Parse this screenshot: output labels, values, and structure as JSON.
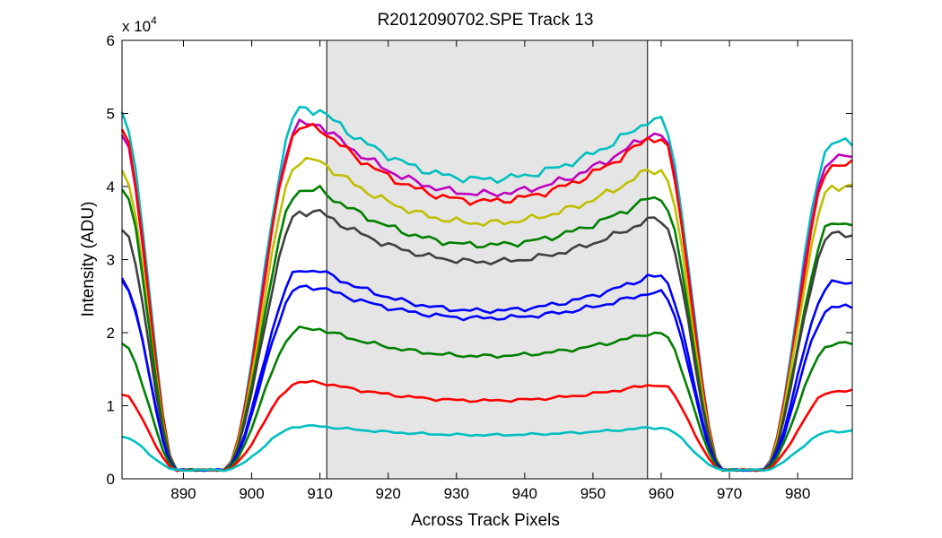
{
  "chart_data": {
    "type": "line",
    "title": "R2012090702.SPE   Track 13",
    "xlabel": "Across Track Pixels",
    "ylabel": "Intensity (ADU)",
    "y_exponent_label": "x 10",
    "y_exponent": "4",
    "xlim": [
      881,
      988
    ],
    "ylim": [
      0,
      6
    ],
    "xticks": [
      890,
      900,
      910,
      920,
      930,
      940,
      950,
      960,
      970,
      980
    ],
    "xtick_labels": [
      "890",
      "900",
      "910",
      "920",
      "930",
      "940",
      "950",
      "960",
      "970",
      "980"
    ],
    "yticks": [
      0,
      1,
      2,
      3,
      4,
      5,
      6
    ],
    "ytick_labels": [
      "0",
      "1",
      "2",
      "3",
      "4",
      "5",
      "6"
    ],
    "grid": false,
    "legend": "none",
    "shaded_region": {
      "x0": 911,
      "x1": 958,
      "color": "#e5e5e5"
    },
    "colors": {
      "background": "#ffffff",
      "axes": "#000000"
    },
    "series": [
      {
        "color": "#00bfbf",
        "peak": 5.05,
        "mid": 4.1,
        "left_edge": 5.0,
        "right_edge": 4.6
      },
      {
        "color": "#bf00bf",
        "peak": 4.85,
        "mid": 3.9,
        "left_edge": 4.7,
        "right_edge": 4.4
      },
      {
        "color": "#ff0000",
        "peak": 4.8,
        "mid": 3.8,
        "left_edge": 4.75,
        "right_edge": 4.3
      },
      {
        "color": "#bfbf00",
        "peak": 4.35,
        "mid": 3.5,
        "left_edge": 4.2,
        "right_edge": 4.0
      },
      {
        "color": "#008000",
        "peak": 3.95,
        "mid": 3.2,
        "left_edge": 4.0,
        "right_edge": 3.5
      },
      {
        "color": "#404040",
        "peak": 3.65,
        "mid": 2.97,
        "left_edge": 3.45,
        "right_edge": 3.35
      },
      {
        "color": "#0000ff",
        "peak": 2.85,
        "mid": 2.3,
        "left_edge": 2.7,
        "right_edge": 2.68
      },
      {
        "color": "#0000ff",
        "peak": 2.62,
        "mid": 2.2,
        "left_edge": 2.72,
        "right_edge": 2.35
      },
      {
        "color": "#008000",
        "peak": 2.05,
        "mid": 1.68,
        "left_edge": 1.85,
        "right_edge": 1.85
      },
      {
        "color": "#ff0000",
        "peak": 1.32,
        "mid": 1.07,
        "left_edge": 1.15,
        "right_edge": 1.2
      },
      {
        "color": "#00bfbf",
        "peak": 0.72,
        "mid": 0.6,
        "left_edge": 0.57,
        "right_edge": 0.65
      }
    ]
  }
}
